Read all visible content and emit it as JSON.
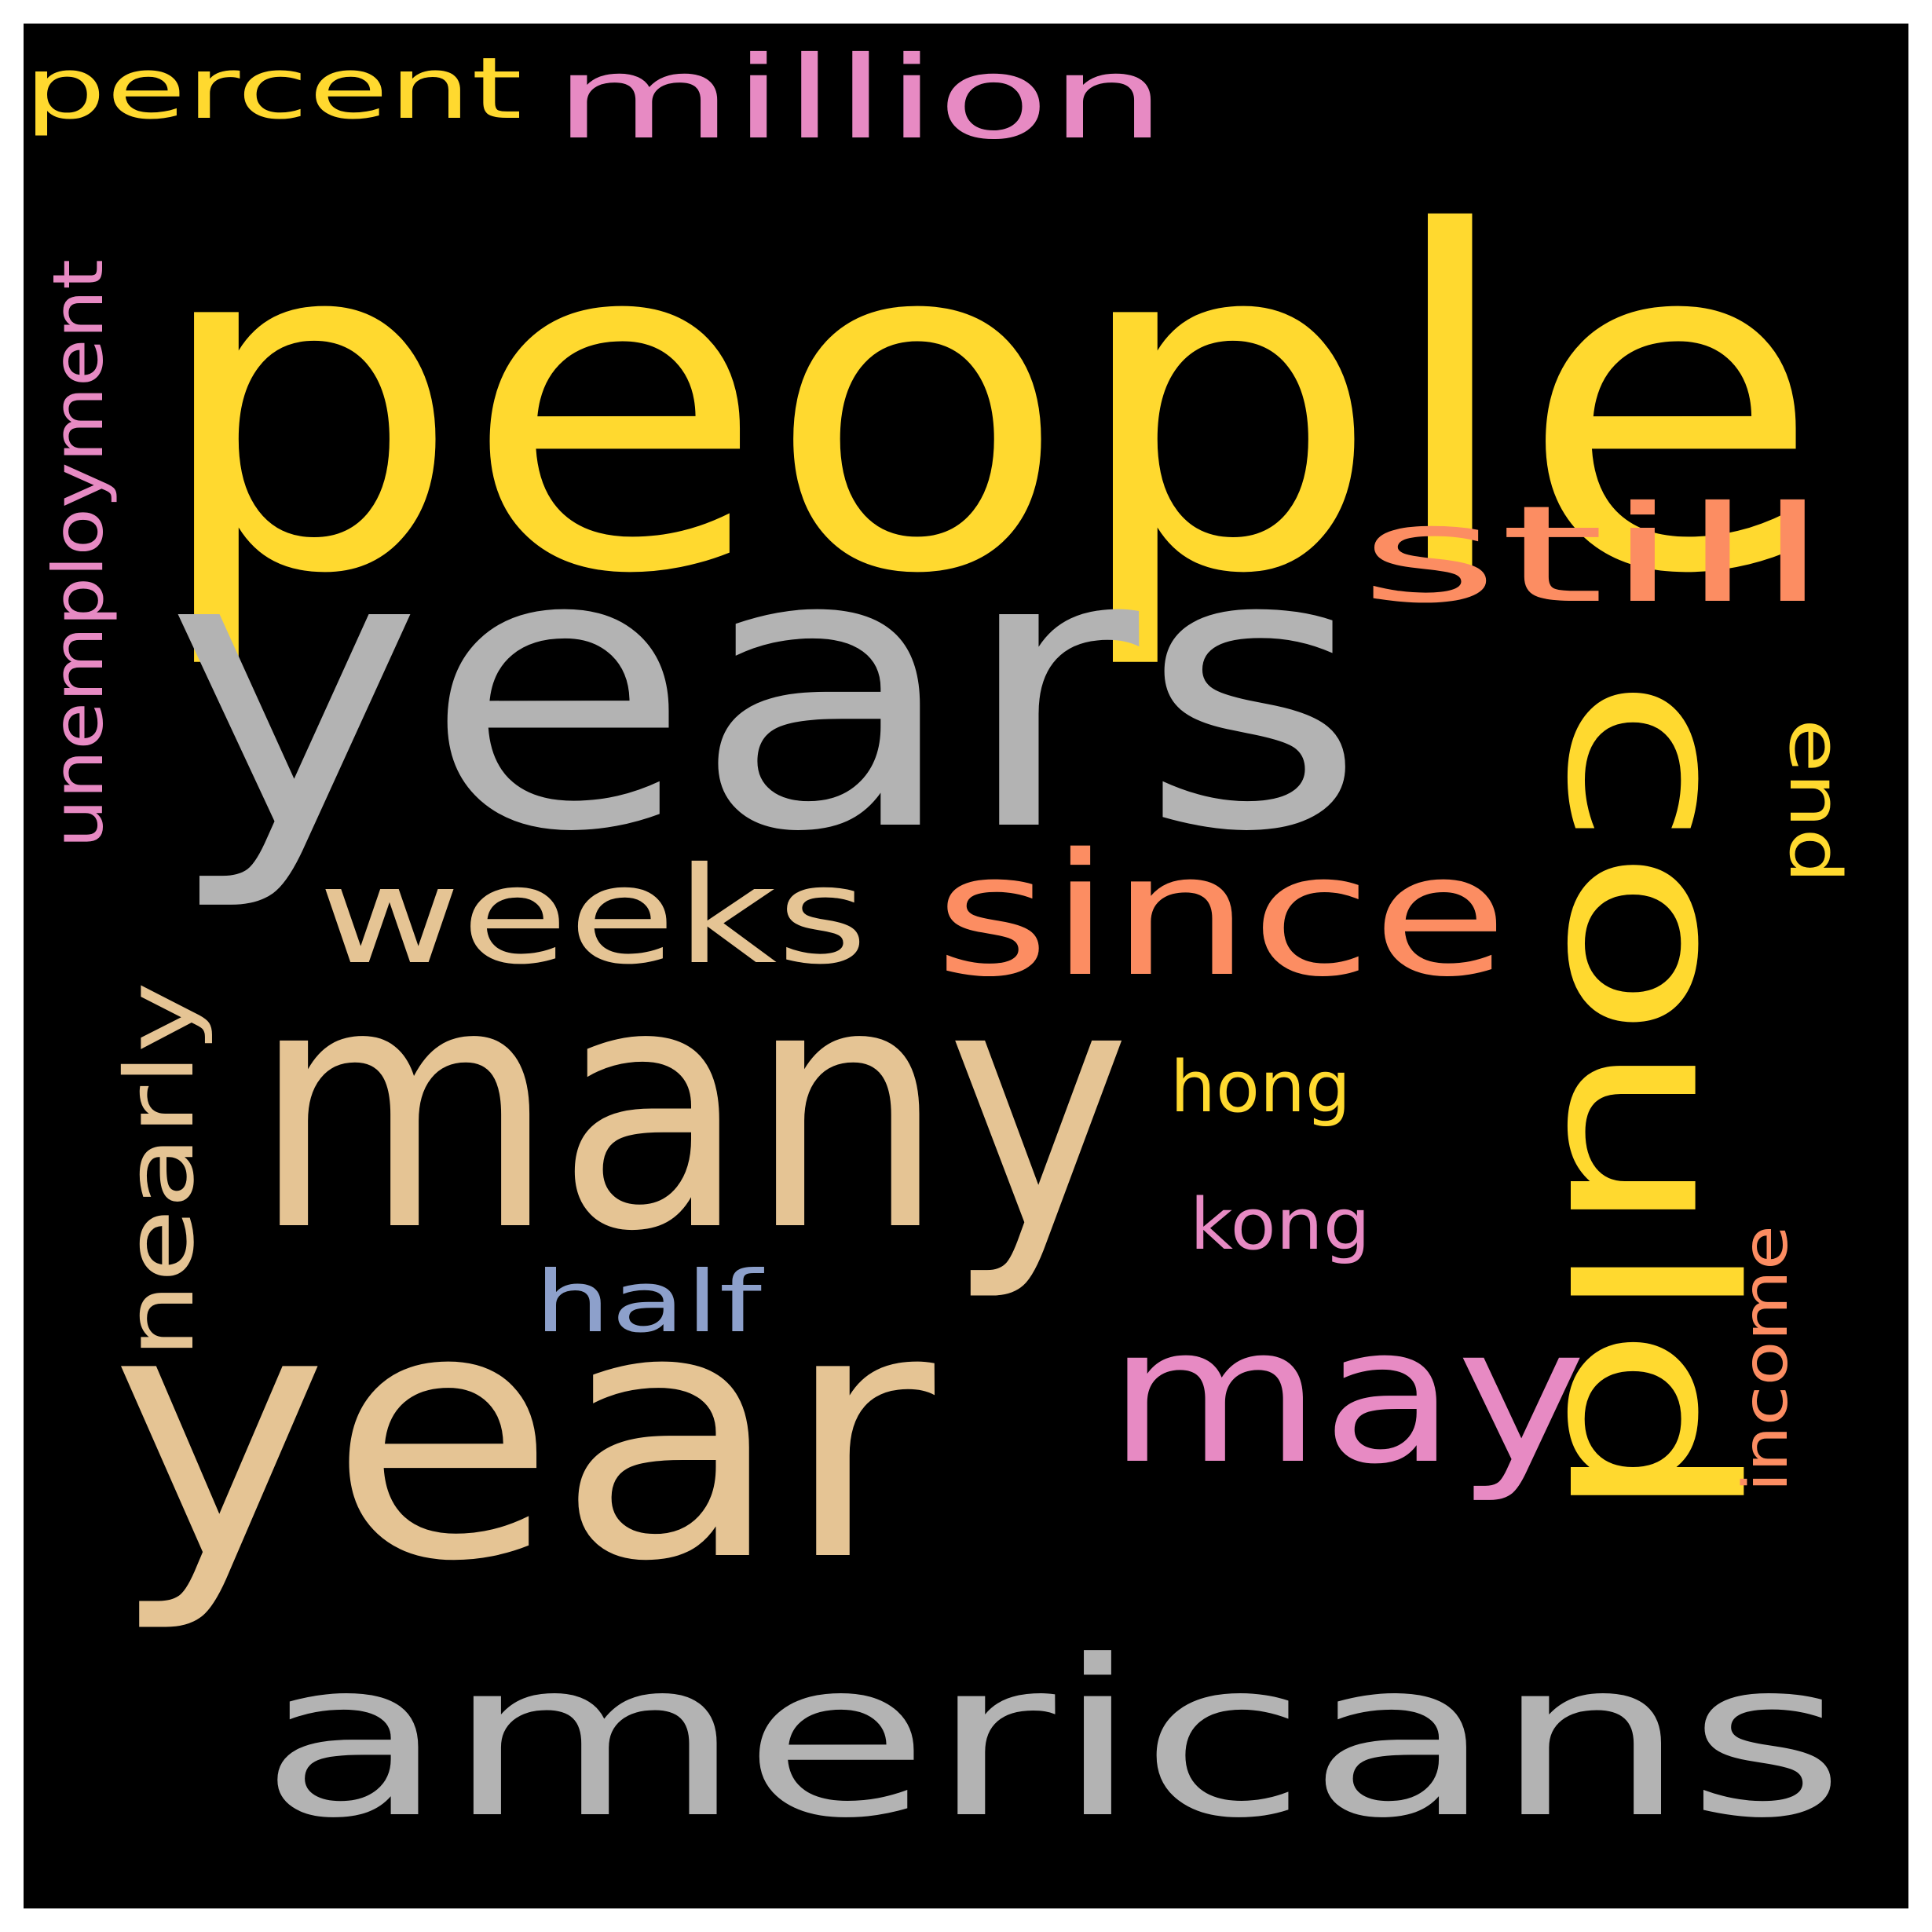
{
  "colors": {
    "background": "#000000",
    "frame": "#ffffff",
    "yellow": "#FFD92F",
    "gray": "#B3B3B3",
    "tan": "#E5C494",
    "salmon": "#FC8D62",
    "pink": "#E78AC3",
    "blue": "#8DA0CB"
  },
  "words": [
    {
      "key": "people",
      "text": "people",
      "color": "#FFD92F"
    },
    {
      "key": "years",
      "text": "years",
      "color": "#B3B3B3"
    },
    {
      "key": "many",
      "text": "many",
      "color": "#E5C494"
    },
    {
      "key": "year",
      "text": "year",
      "color": "#E5C494"
    },
    {
      "key": "americans",
      "text": "americans",
      "color": "#B3B3B3"
    },
    {
      "key": "could",
      "text": "could",
      "color": "#FFD92F"
    },
    {
      "key": "since",
      "text": "since",
      "color": "#FC8D62"
    },
    {
      "key": "weeks",
      "text": "weeks",
      "color": "#E5C494"
    },
    {
      "key": "may",
      "text": "may",
      "color": "#E78AC3"
    },
    {
      "key": "still",
      "text": "still",
      "color": "#FC8D62"
    },
    {
      "key": "million",
      "text": "million",
      "color": "#E78AC3"
    },
    {
      "key": "percent",
      "text": "percent",
      "color": "#FFD92F"
    },
    {
      "key": "unemployment",
      "text": "unemployment",
      "color": "#E78AC3"
    },
    {
      "key": "nearly",
      "text": "nearly",
      "color": "#E5C494"
    },
    {
      "key": "half",
      "text": "half",
      "color": "#8DA0CB"
    },
    {
      "key": "hong",
      "text": "hong",
      "color": "#FFD92F"
    },
    {
      "key": "kong",
      "text": "kong",
      "color": "#E78AC3"
    },
    {
      "key": "end",
      "text": "end",
      "color": "#FFD92F"
    },
    {
      "key": "income",
      "text": "income",
      "color": "#FC8D62"
    }
  ]
}
